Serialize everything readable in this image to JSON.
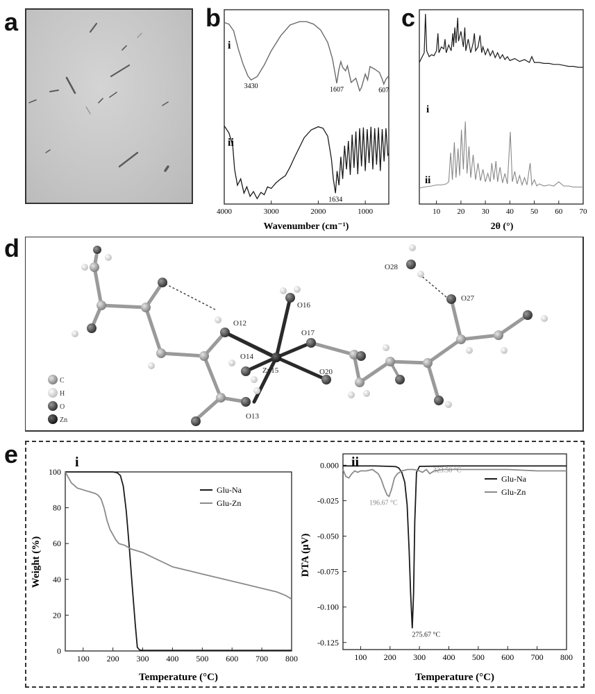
{
  "panels": {
    "a": {
      "label": "a"
    },
    "b": {
      "label": "b"
    },
    "c": {
      "label": "c"
    },
    "d": {
      "label": "d"
    },
    "e": {
      "label": "e"
    }
  },
  "chart_data": [
    {
      "id": "b",
      "type": "line",
      "xlabel": "Wavenumber (cm⁻¹)",
      "ylabel": "",
      "xlim": [
        4000,
        500
      ],
      "x_reversed": true,
      "xticks": [
        "4000",
        "3000",
        "2000",
        "1000"
      ],
      "xtick_values": [
        4000,
        3000,
        2000,
        1000
      ],
      "series": [
        {
          "name": "i",
          "x": [
            4000,
            3900,
            3800,
            3700,
            3600,
            3500,
            3430,
            3300,
            3150,
            3000,
            2800,
            2600,
            2400,
            2250,
            2100,
            1950,
            1800,
            1700,
            1640,
            1607,
            1560,
            1520,
            1480,
            1420,
            1380,
            1300,
            1200,
            1120,
            1080,
            1000,
            950,
            900,
            800,
            700,
            640,
            607,
            560,
            500
          ],
          "y": [
            0.98,
            0.96,
            0.88,
            0.66,
            0.48,
            0.34,
            0.29,
            0.33,
            0.47,
            0.64,
            0.82,
            0.95,
            0.99,
            0.99,
            0.96,
            0.89,
            0.74,
            0.55,
            0.36,
            0.25,
            0.42,
            0.51,
            0.44,
            0.4,
            0.46,
            0.26,
            0.31,
            0.16,
            0.2,
            0.36,
            0.29,
            0.45,
            0.42,
            0.38,
            0.3,
            0.24,
            0.3,
            0.34
          ]
        },
        {
          "name": "ii",
          "x": [
            4000,
            3900,
            3820,
            3780,
            3720,
            3650,
            3580,
            3520,
            3450,
            3380,
            3300,
            3220,
            3150,
            3080,
            3000,
            2900,
            2800,
            2700,
            2600,
            2500,
            2300,
            2150,
            2000,
            1900,
            1800,
            1720,
            1680,
            1634,
            1600,
            1560,
            1520,
            1480,
            1440,
            1400,
            1360,
            1320,
            1280,
            1240,
            1200,
            1160,
            1120,
            1080,
            1040,
            1000,
            960,
            920,
            880,
            840,
            800,
            760,
            720,
            680,
            640,
            600,
            560,
            520,
            500
          ],
          "y": [
            0.97,
            0.88,
            0.72,
            0.42,
            0.22,
            0.3,
            0.12,
            0.2,
            0.08,
            0.14,
            0.05,
            0.13,
            0.1,
            0.2,
            0.18,
            0.25,
            0.3,
            0.34,
            0.45,
            0.58,
            0.82,
            0.92,
            0.96,
            0.94,
            0.84,
            0.55,
            0.3,
            0.12,
            0.4,
            0.22,
            0.58,
            0.3,
            0.72,
            0.42,
            0.78,
            0.35,
            0.86,
            0.44,
            0.9,
            0.36,
            0.94,
            0.46,
            0.95,
            0.4,
            0.93,
            0.5,
            0.96,
            0.42,
            0.94,
            0.48,
            0.95,
            0.4,
            0.93,
            0.52,
            0.94,
            0.6,
            0.62
          ]
        }
      ],
      "annotations": [
        {
          "text": "3430",
          "x": 3430,
          "series": "i"
        },
        {
          "text": "1607",
          "x": 1607,
          "series": "i"
        },
        {
          "text": "607",
          "x": 607,
          "series": "i"
        },
        {
          "text": "1634",
          "x": 1634,
          "series": "ii"
        }
      ],
      "color": "#1a1a1a",
      "color_i": "#6b6b6b"
    },
    {
      "id": "c",
      "type": "line",
      "xlabel": "2θ (°)",
      "ylabel": "",
      "xlim": [
        3,
        70
      ],
      "xticks": [
        "10",
        "20",
        "30",
        "40",
        "50",
        "60",
        "70"
      ],
      "xtick_values": [
        10,
        20,
        30,
        40,
        50,
        60,
        70
      ],
      "series": [
        {
          "name": "i",
          "x": [
            3,
            4,
            5,
            5.5,
            6,
            7,
            8,
            9,
            10,
            10.6,
            11,
            12,
            13,
            13.5,
            14,
            15,
            16,
            16.7,
            17,
            17.5,
            18,
            18.7,
            19,
            20,
            21,
            21.6,
            22,
            23,
            24,
            25,
            25.5,
            26,
            27,
            27.8,
            28.5,
            29,
            30,
            31,
            32,
            33,
            34,
            35,
            36,
            37,
            38,
            39,
            40,
            42,
            44,
            46,
            48,
            49,
            50,
            52,
            54,
            56,
            58,
            60,
            62,
            64,
            66,
            68,
            70
          ],
          "y": [
            0.5,
            0.55,
            0.6,
            1.0,
            0.62,
            0.56,
            0.58,
            0.57,
            0.62,
            0.8,
            0.6,
            0.66,
            0.64,
            0.74,
            0.6,
            0.68,
            0.62,
            0.8,
            0.66,
            0.86,
            0.7,
            0.96,
            0.72,
            0.82,
            0.66,
            0.86,
            0.62,
            0.74,
            0.6,
            0.7,
            0.8,
            0.62,
            0.66,
            0.78,
            0.6,
            0.66,
            0.58,
            0.64,
            0.57,
            0.62,
            0.55,
            0.6,
            0.54,
            0.58,
            0.53,
            0.56,
            0.52,
            0.54,
            0.51,
            0.53,
            0.5,
            0.56,
            0.5,
            0.5,
            0.49,
            0.49,
            0.48,
            0.48,
            0.47,
            0.46,
            0.46,
            0.45,
            0.45
          ]
        },
        {
          "name": "ii",
          "x": [
            3,
            5,
            8,
            10,
            12,
            14,
            15,
            15.8,
            16.5,
            17.3,
            18,
            18.8,
            19.5,
            20.2,
            21,
            21.8,
            22.5,
            23.3,
            24,
            25,
            26,
            27,
            28,
            29,
            30,
            31,
            32,
            32.6,
            33.5,
            34.3,
            35,
            36,
            37,
            38,
            39,
            40.2,
            41,
            42,
            43,
            44,
            45,
            46,
            47,
            48.3,
            49,
            50,
            51,
            52,
            54,
            56,
            58,
            60,
            62,
            64,
            66,
            68,
            70
          ],
          "y": [
            0.06,
            0.07,
            0.08,
            0.09,
            0.09,
            0.1,
            0.12,
            0.4,
            0.14,
            0.5,
            0.16,
            0.44,
            0.18,
            0.62,
            0.24,
            0.7,
            0.2,
            0.46,
            0.16,
            0.38,
            0.14,
            0.3,
            0.13,
            0.24,
            0.12,
            0.2,
            0.12,
            0.3,
            0.14,
            0.32,
            0.12,
            0.26,
            0.11,
            0.2,
            0.1,
            0.6,
            0.12,
            0.22,
            0.1,
            0.18,
            0.09,
            0.16,
            0.09,
            0.3,
            0.09,
            0.14,
            0.08,
            0.1,
            0.08,
            0.09,
            0.08,
            0.12,
            0.08,
            0.08,
            0.07,
            0.07,
            0.07
          ]
        }
      ],
      "color_i": "#1a1a1a",
      "color_ii": "#888888"
    },
    {
      "id": "e-i",
      "type": "line",
      "subpanel": "i",
      "xlabel": "Temperature (°C)",
      "ylabel": "Weight (%)",
      "xlim": [
        40,
        800
      ],
      "ylim": [
        0,
        100
      ],
      "xticks": [
        "100",
        "200",
        "300",
        "400",
        "500",
        "600",
        "700",
        "800"
      ],
      "xtick_values": [
        100,
        200,
        300,
        400,
        500,
        600,
        700,
        800
      ],
      "yticks": [
        "0",
        "20",
        "40",
        "60",
        "80",
        "100"
      ],
      "ytick_values": [
        0,
        20,
        40,
        60,
        80,
        100
      ],
      "legend_position": "top-right",
      "series": [
        {
          "name": "Glu-Na",
          "color": "#1a1a1a",
          "x": [
            40,
            100,
            150,
            200,
            215,
            225,
            235,
            245,
            255,
            265,
            275,
            282,
            290,
            300,
            400,
            500,
            600,
            700,
            800
          ],
          "y": [
            100,
            100,
            100,
            100,
            99.5,
            98,
            92,
            78,
            58,
            36,
            15,
            2,
            0.5,
            0.3,
            0.3,
            0.3,
            0.3,
            0.3,
            0.3
          ]
        },
        {
          "name": "Glu-Zn",
          "color": "#8a8a8a",
          "x": [
            40,
            60,
            80,
            100,
            120,
            140,
            150,
            160,
            170,
            180,
            190,
            200,
            210,
            220,
            240,
            260,
            280,
            300,
            350,
            400,
            450,
            500,
            550,
            600,
            650,
            700,
            750,
            780,
            800
          ],
          "y": [
            100,
            94,
            91,
            90,
            89,
            88,
            87,
            85,
            80,
            73,
            68,
            65,
            62,
            60,
            59,
            57,
            56,
            55,
            51,
            47,
            45,
            43,
            41,
            39,
            37,
            35,
            33,
            31,
            29
          ]
        }
      ]
    },
    {
      "id": "e-ii",
      "type": "line",
      "subpanel": "ii",
      "xlabel": "Temperature (°C)",
      "ylabel": "DTA (μV)",
      "xlim": [
        40,
        800
      ],
      "ylim": [
        -0.13,
        0.008
      ],
      "xticks": [
        "100",
        "200",
        "300",
        "400",
        "500",
        "600",
        "700",
        "800"
      ],
      "xtick_values": [
        100,
        200,
        300,
        400,
        500,
        600,
        700,
        800
      ],
      "yticks": [
        "0.000",
        "-0.025",
        "-0.050",
        "-0.075",
        "-0.100",
        "-0.125"
      ],
      "ytick_values": [
        0,
        -0.025,
        -0.05,
        -0.075,
        -0.1,
        -0.125
      ],
      "legend_position": "top-right",
      "series": [
        {
          "name": "Glu-Na",
          "color": "#1a1a1a",
          "x": [
            40,
            100,
            150,
            200,
            220,
            230,
            240,
            250,
            258,
            265,
            270,
            275.67,
            280,
            284,
            290,
            300,
            400,
            500,
            600,
            700,
            800
          ],
          "y": [
            -0.0005,
            -0.0005,
            -0.0005,
            -0.0008,
            -0.001,
            -0.002,
            -0.005,
            -0.012,
            -0.028,
            -0.06,
            -0.09,
            -0.115,
            -0.09,
            -0.04,
            -0.005,
            -0.0008,
            -0.0005,
            -0.0005,
            -0.0005,
            -0.0005,
            -0.0005
          ]
        },
        {
          "name": "Glu-Zn",
          "color": "#8a8a8a",
          "x": [
            40,
            50,
            60,
            70,
            80,
            90,
            100,
            120,
            140,
            160,
            170,
            180,
            190,
            196.67,
            205,
            215,
            225,
            240,
            260,
            280,
            300,
            310,
            323.5,
            335,
            350,
            380,
            420,
            500,
            600,
            700,
            800
          ],
          "y": [
            -0.003,
            -0.008,
            -0.009,
            -0.006,
            -0.004,
            -0.005,
            -0.004,
            -0.004,
            -0.003,
            -0.006,
            -0.01,
            -0.016,
            -0.021,
            -0.022,
            -0.017,
            -0.009,
            -0.006,
            -0.004,
            -0.003,
            -0.003,
            -0.004,
            -0.005,
            -0.003,
            -0.006,
            -0.004,
            -0.003,
            -0.003,
            -0.003,
            -0.003,
            -0.004,
            -0.004
          ]
        }
      ],
      "annotations": [
        {
          "text": "196.67 °C",
          "x": 196.67,
          "y": -0.022
        },
        {
          "text": "323.50 °C",
          "x": 323.5,
          "y": -0.003
        },
        {
          "text": "275.67 °C",
          "x": 275.67,
          "y": -0.115
        }
      ]
    }
  ],
  "structure": {
    "atom_labels": [
      "O28",
      "O27",
      "O16",
      "O12",
      "O17",
      "O14",
      "Zn15",
      "O20",
      "O13"
    ],
    "legend": [
      "C",
      "H",
      "O",
      "Zn"
    ],
    "legend_colors": [
      "#9a9a9a",
      "#e2e2e2",
      "#505050",
      "#262626"
    ]
  }
}
